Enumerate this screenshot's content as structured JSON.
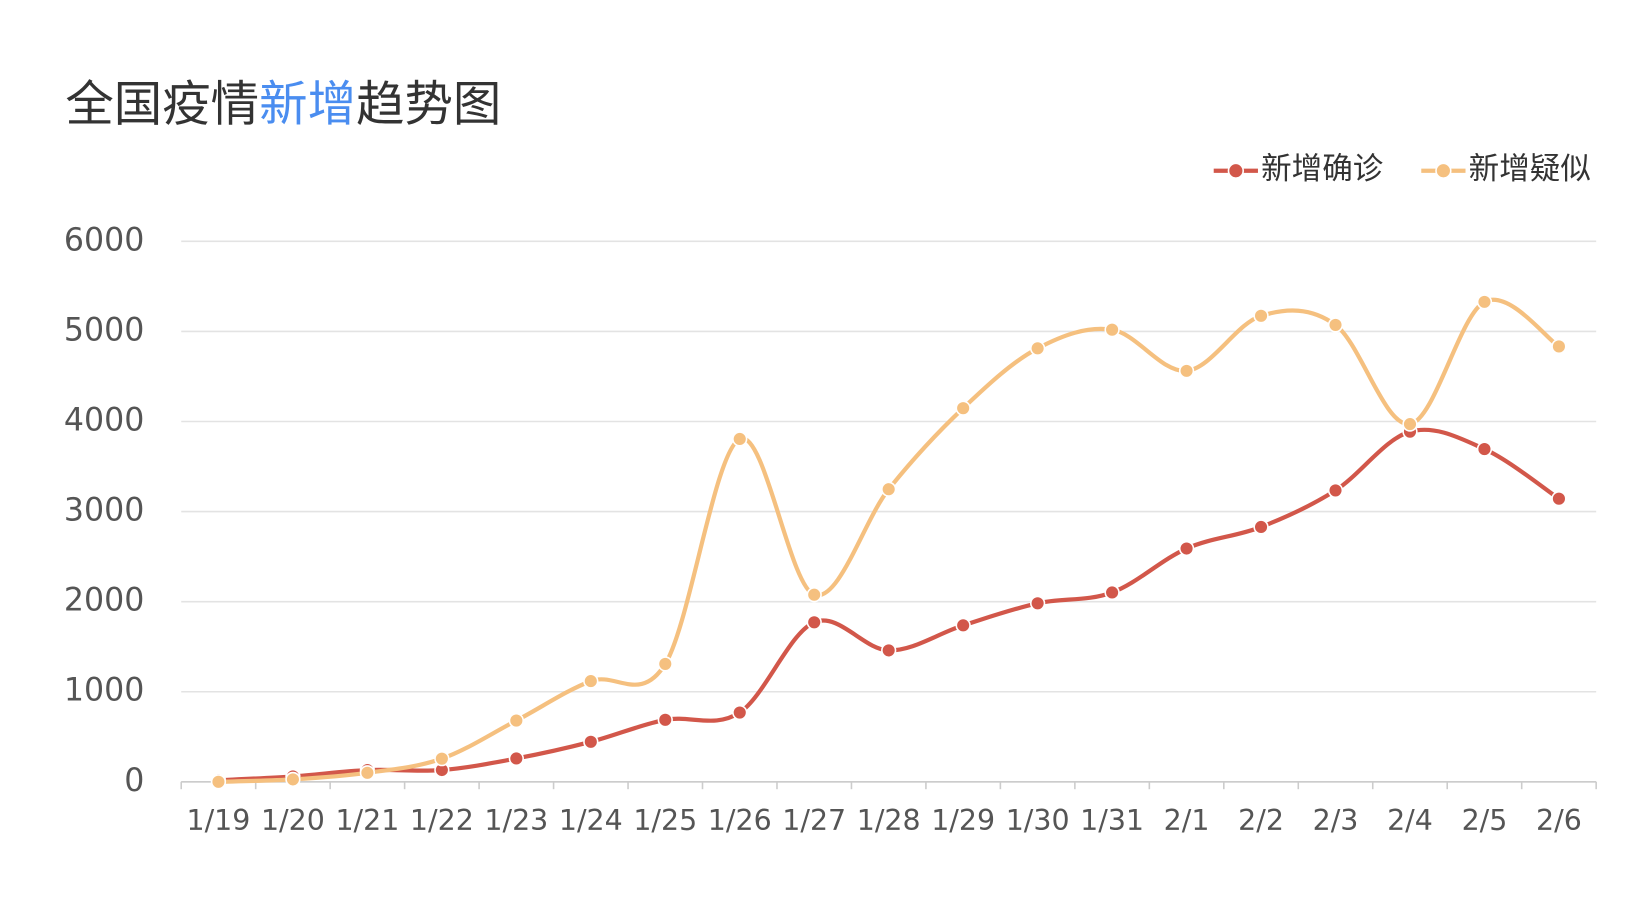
{
  "chart_data": {
    "type": "line",
    "title": [
      "全国疫情",
      "新增",
      "趋势图"
    ],
    "title_color": "#333333",
    "title_highlight_color": "#4a8df0",
    "categories": [
      "1/19",
      "1/20",
      "1/21",
      "1/22",
      "1/23",
      "1/24",
      "1/25",
      "1/26",
      "1/27",
      "1/28",
      "1/29",
      "1/30",
      "1/31",
      "2/1",
      "2/2",
      "2/3",
      "2/4",
      "2/5",
      "2/6"
    ],
    "series": [
      {
        "name": "新增确诊",
        "color": "#d2574a",
        "values": [
          17,
          60,
          130,
          131,
          259,
          444,
          688,
          769,
          1771,
          1459,
          1737,
          1982,
          2102,
          2590,
          2829,
          3235,
          3887,
          3694,
          3143
        ]
      },
      {
        "name": "新增疑似",
        "color": "#f5c07f",
        "values": [
          0,
          27,
          100,
          257,
          680,
          1118,
          1309,
          3806,
          2077,
          3248,
          4148,
          4812,
          5019,
          4562,
          5173,
          5072,
          3971,
          5328,
          4833
        ]
      }
    ],
    "ylim": [
      0,
      6000
    ],
    "yticks": [
      0,
      1000,
      2000,
      3000,
      4000,
      5000,
      6000
    ],
    "grid": true,
    "smooth": true,
    "legend": "top-right"
  }
}
